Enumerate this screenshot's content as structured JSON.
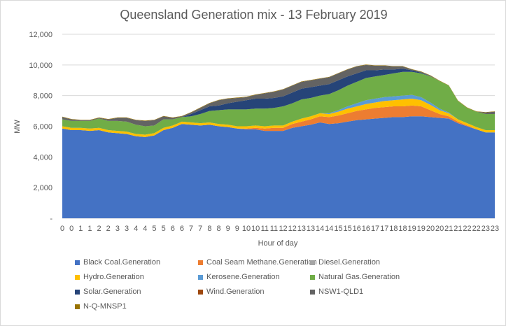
{
  "chart_data": {
    "type": "area",
    "stacked": true,
    "title": "Queensland Generation mix - 13 February 2019",
    "xlabel": "Hour of day",
    "ylabel": "MW",
    "ylim": [
      0,
      12000
    ],
    "y_ticks": [
      0,
      2000,
      4000,
      6000,
      8000,
      10000,
      12000
    ],
    "y_tick_labels": [
      "-",
      "2,000",
      "4,000",
      "6,000",
      "8,000",
      "10,000",
      "12,000"
    ],
    "x_tick_labels": [
      "0",
      "0",
      "1",
      "1",
      "2",
      "2",
      "3",
      "3",
      "4",
      "4",
      "5",
      "5",
      "6",
      "6",
      "7",
      "7",
      "8",
      "8",
      "9",
      "9",
      "10",
      "10",
      "11",
      "11",
      "12",
      "12",
      "13",
      "13",
      "14",
      "14",
      "15",
      "15",
      "16",
      "16",
      "17",
      "17",
      "18",
      "18",
      "19",
      "19",
      "20",
      "20",
      "21",
      "21",
      "22",
      "22",
      "23",
      "23"
    ],
    "grid": "horizontal",
    "legend_position": "bottom",
    "series": [
      {
        "name": "Black Coal.Generation",
        "color": "#4472C4",
        "values": [
          5850,
          5750,
          5750,
          5700,
          5750,
          5600,
          5550,
          5500,
          5350,
          5300,
          5400,
          5750,
          5900,
          6150,
          6100,
          6050,
          6100,
          6000,
          5950,
          5850,
          5800,
          5800,
          5700,
          5700,
          5700,
          5900,
          6000,
          6100,
          6250,
          6150,
          6200,
          6300,
          6400,
          6450,
          6500,
          6550,
          6600,
          6600,
          6650,
          6650,
          6600,
          6550,
          6500,
          6200,
          6000,
          5800,
          5600,
          5600
        ]
      },
      {
        "name": "Coal Seam Methane.Generation",
        "color": "#ED7D31",
        "values": [
          0,
          0,
          0,
          0,
          0,
          0,
          0,
          0,
          0,
          0,
          0,
          0,
          0,
          0,
          0,
          0,
          0,
          0,
          0,
          0,
          50,
          100,
          150,
          200,
          200,
          250,
          300,
          350,
          400,
          450,
          500,
          550,
          600,
          650,
          700,
          700,
          700,
          700,
          700,
          650,
          450,
          250,
          150,
          100,
          50,
          0,
          0,
          0
        ]
      },
      {
        "name": "Diesel.Generation",
        "color": "#A5A5A5",
        "values": [
          0,
          0,
          0,
          0,
          0,
          0,
          0,
          0,
          0,
          0,
          0,
          0,
          0,
          0,
          0,
          0,
          0,
          0,
          0,
          0,
          0,
          0,
          0,
          0,
          0,
          0,
          0,
          0,
          0,
          0,
          0,
          0,
          0,
          0,
          0,
          0,
          0,
          0,
          0,
          0,
          0,
          0,
          0,
          0,
          0,
          0,
          0,
          0
        ]
      },
      {
        "name": "Hydro.Generation",
        "color": "#FFC000",
        "values": [
          150,
          150,
          150,
          150,
          150,
          150,
          150,
          150,
          150,
          150,
          150,
          150,
          150,
          150,
          150,
          150,
          150,
          150,
          150,
          150,
          150,
          150,
          150,
          150,
          150,
          150,
          200,
          200,
          200,
          200,
          250,
          300,
          300,
          350,
          350,
          400,
          400,
          450,
          450,
          400,
          350,
          250,
          200,
          150,
          150,
          150,
          150,
          150
        ]
      },
      {
        "name": "Kerosene.Generation",
        "color": "#5B9BD5",
        "values": [
          0,
          0,
          0,
          0,
          0,
          0,
          0,
          0,
          0,
          0,
          0,
          0,
          0,
          0,
          0,
          0,
          0,
          0,
          0,
          0,
          0,
          0,
          0,
          0,
          0,
          0,
          0,
          0,
          0,
          50,
          100,
          150,
          200,
          250,
          250,
          250,
          250,
          250,
          250,
          200,
          150,
          100,
          50,
          0,
          0,
          0,
          0,
          0
        ]
      },
      {
        "name": "Natural Gas.Generation",
        "color": "#70AD47",
        "values": [
          450,
          450,
          450,
          500,
          600,
          600,
          650,
          650,
          600,
          550,
          500,
          550,
          400,
          300,
          400,
          600,
          750,
          900,
          1000,
          1100,
          1100,
          1100,
          1150,
          1150,
          1250,
          1200,
          1250,
          1200,
          1150,
          1250,
          1300,
          1350,
          1400,
          1450,
          1450,
          1450,
          1500,
          1550,
          1500,
          1550,
          1700,
          1800,
          1750,
          1200,
          1000,
          1000,
          1050,
          1050
        ]
      },
      {
        "name": "Solar.Generation",
        "color": "#264478",
        "values": [
          0,
          0,
          0,
          0,
          0,
          0,
          0,
          0,
          0,
          0,
          0,
          0,
          0,
          0,
          150,
          250,
          300,
          300,
          400,
          500,
          600,
          650,
          650,
          650,
          650,
          700,
          700,
          700,
          650,
          650,
          650,
          600,
          550,
          500,
          400,
          350,
          250,
          200,
          100,
          50,
          0,
          0,
          0,
          0,
          0,
          0,
          0,
          0
        ]
      },
      {
        "name": "Wind.Generation",
        "color": "#9E480E",
        "values": [
          0,
          0,
          0,
          0,
          0,
          0,
          0,
          0,
          0,
          0,
          0,
          0,
          0,
          0,
          0,
          0,
          0,
          0,
          0,
          0,
          0,
          0,
          0,
          0,
          0,
          0,
          0,
          0,
          0,
          0,
          0,
          0,
          0,
          0,
          0,
          0,
          0,
          0,
          0,
          0,
          0,
          0,
          0,
          0,
          0,
          0,
          0,
          0
        ]
      },
      {
        "name": "NSW1-QLD1",
        "color": "#636363",
        "values": [
          150,
          100,
          50,
          50,
          50,
          100,
          200,
          250,
          300,
          350,
          350,
          200,
          100,
          50,
          100,
          150,
          200,
          350,
          300,
          250,
          200,
          250,
          350,
          400,
          450,
          450,
          450,
          450,
          450,
          450,
          450,
          450,
          450,
          350,
          300,
          250,
          200,
          150,
          50,
          50,
          50,
          0,
          0,
          0,
          0,
          0,
          100,
          150
        ]
      },
      {
        "name": "N-Q-MNSP1",
        "color": "#997300",
        "values": [
          25,
          25,
          25,
          25,
          25,
          25,
          25,
          25,
          25,
          25,
          25,
          25,
          25,
          25,
          25,
          25,
          25,
          25,
          25,
          25,
          25,
          25,
          25,
          25,
          25,
          25,
          25,
          25,
          25,
          25,
          25,
          25,
          25,
          25,
          25,
          25,
          25,
          25,
          25,
          25,
          25,
          25,
          25,
          25,
          25,
          25,
          25,
          25
        ]
      }
    ]
  }
}
